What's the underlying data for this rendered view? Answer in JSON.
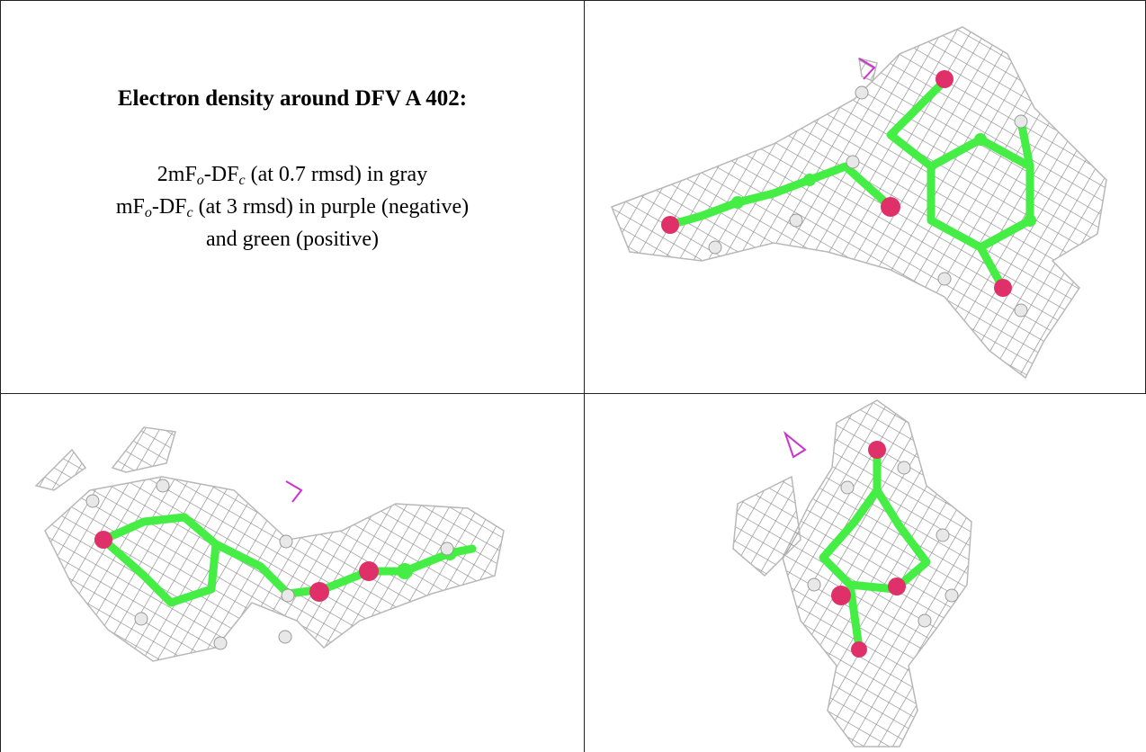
{
  "left_cell": {
    "title": "Electron density around DFV A 402:",
    "lines": [
      [
        "2mF",
        "o",
        "-DF",
        "c",
        " (at 0.7 rmsd) in gray"
      ],
      [
        "mF",
        "o",
        "-DF",
        "c",
        " (at 3 rmsd) in purple (negative)"
      ],
      [
        "and green (positive)"
      ]
    ]
  }
}
